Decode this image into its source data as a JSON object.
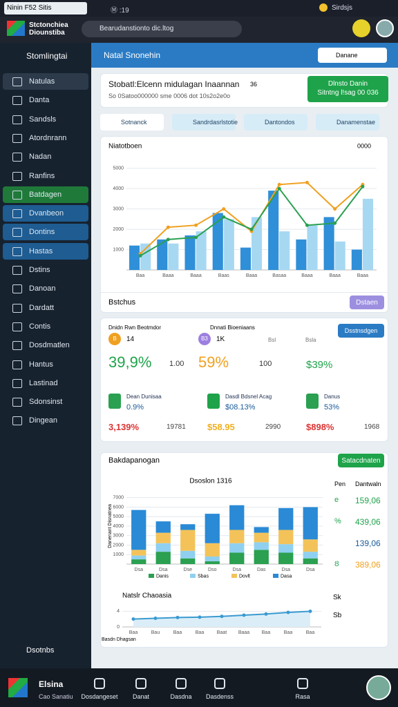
{
  "status_bar": {
    "left": "Ninin F52 Sitis",
    "tab": "Ⓜ :19",
    "right": "Sirdsjs"
  },
  "browser": {
    "title": "Stctonchiea Diounstiba",
    "url": "Bearudanstionto dic.ltog"
  },
  "sidebar": {
    "header": "Stomlingtai",
    "items": [
      "Natulas",
      "Danta",
      "Sandsls",
      "Atordnrann",
      "Nadan",
      "Ranfins",
      "Batdagen",
      "Dvanbeon",
      "Dontins",
      "Hastas",
      "Dstins",
      "Danoan",
      "Dardatt",
      "Contis",
      "Dosdmatlen",
      "Hantus",
      "Lastinad",
      "Sdonsinst",
      "Dingean"
    ],
    "footer": "Dsotnbs"
  },
  "panel": {
    "title": "Natal Snonehin",
    "pill": "Danane"
  },
  "summary": {
    "title": "Stobatl:Elcenn midulagan Inaannan",
    "meta": "36",
    "sub": "So 0Satoo000000 sme 0006 dot 10s2o2e0o",
    "button_line1": "Dlnsto Danin",
    "button_line2": "Sitntng l!sag 00 036"
  },
  "tabs": [
    "Sotnanck",
    "Sandrdasrlstotie",
    "Dantondos",
    "Danamenstae"
  ],
  "trend": {
    "footer": "Bstchus",
    "button": "Dstaen"
  },
  "stats": {
    "head": [
      "Dnidn Rwn Beotmdor",
      "Dnnati Bioeniaans",
      "Bsl",
      "Bsla"
    ],
    "button": "Dsstnsdgen",
    "top": [
      {
        "badge": "B",
        "small": "14",
        "big": "39,9%",
        "side": "1.00"
      },
      {
        "badge": "B3",
        "small": "1K",
        "big": "59%",
        "side": "100"
      },
      {
        "big": "$39%"
      }
    ],
    "bottom": [
      {
        "label": "Dean Dunisaa",
        "small": "0.9%",
        "big": "3,139%",
        "side": "19781"
      },
      {
        "label": "Dasdl Bdsnel Acag",
        "small": "$08.13%",
        "big": "$58.95",
        "side": "2990"
      },
      {
        "label": "Danus",
        "small": "53%",
        "big": "$898%",
        "side": "1968"
      }
    ]
  },
  "breakdown": {
    "title": "Bakdapanogan",
    "button": "Satacdnaten",
    "col_head": [
      "Pen",
      "Dantwaln"
    ],
    "rows": [
      [
        "e",
        "159,06"
      ],
      [
        "%",
        "439,06"
      ],
      [
        "",
        "139,06"
      ],
      [
        "Ȣ",
        "389,06"
      ]
    ],
    "side": [
      "Sk",
      "Sb"
    ]
  },
  "bottom_nav": {
    "brand": "Elsina",
    "brand_sub": "Cao Sanatiu",
    "items": [
      "Dosdangeset",
      "Danat",
      "Dasdna",
      "Dasdenss",
      "Rasa"
    ]
  },
  "chart_data": [
    {
      "type": "combo",
      "title": "Niatotboen",
      "annotation": "0000",
      "categories": [
        "Baa",
        "Baaa",
        "Baaa",
        "Baas",
        "Baaa",
        "Basaa",
        "Baaa",
        "Baaa",
        "Baaa"
      ],
      "ylim": [
        0,
        5500
      ],
      "yticks": [
        1000,
        2000,
        3000,
        4000,
        5000
      ],
      "grid": true,
      "series": [
        {
          "kind": "bar",
          "color": "#2f8fd8",
          "values": [
            1200,
            1500,
            1700,
            2800,
            1100,
            3900,
            1500,
            2600,
            1000
          ]
        },
        {
          "kind": "bar",
          "color": "#a7d8f2",
          "values": [
            1300,
            1300,
            1900,
            2500,
            2600,
            1900,
            2200,
            1400,
            3500
          ]
        },
        {
          "kind": "line",
          "color": "#f0a020",
          "values": [
            800,
            2100,
            2200,
            3000,
            1900,
            4200,
            4300,
            3000,
            4200
          ]
        },
        {
          "kind": "line",
          "color": "#2aa050",
          "values": [
            700,
            1500,
            1600,
            2600,
            2000,
            4000,
            2200,
            2300,
            4100
          ]
        }
      ]
    },
    {
      "type": "stacked_bar",
      "title": "Dsoslon 1316",
      "ylabel": "Danenant Disnatnea",
      "categories": [
        "Dsa",
        "Dsa",
        "Dse",
        "Dso",
        "Dsa",
        "Das",
        "Dsa",
        "Dsa"
      ],
      "ylim": [
        0,
        8000
      ],
      "yticks": [
        1000,
        2000,
        3000,
        4000,
        5000,
        6000,
        7000
      ],
      "grid": true,
      "series": [
        {
          "name": "Danis",
          "color": "#2aa050",
          "values": [
            500,
            1300,
            600,
            300,
            1200,
            1500,
            1200,
            600
          ]
        },
        {
          "name": "Sbas",
          "color": "#8fd0f0",
          "values": [
            400,
            900,
            800,
            500,
            1000,
            800,
            900,
            700
          ]
        },
        {
          "name": "Dovlt",
          "color": "#f3c35a",
          "values": [
            600,
            1100,
            2200,
            1400,
            1400,
            1000,
            1500,
            1300
          ]
        },
        {
          "name": "Dasa",
          "color": "#2a8ad6",
          "values": [
            4200,
            1200,
            600,
            3100,
            2600,
            600,
            2300,
            3400
          ]
        }
      ]
    },
    {
      "type": "line",
      "title": "Natslr Chaoasia",
      "caption": "Basdn Dhagsan",
      "categories": [
        "Baa",
        "Bau",
        "Baa",
        "Baa",
        "Baat",
        "Baaa",
        "Baa",
        "Baa",
        "Baa"
      ],
      "ylim": [
        0,
        6
      ],
      "yticks": [
        0,
        4
      ],
      "grid": true,
      "series": [
        {
          "color": "#3a9ad0",
          "values": [
            2,
            2.2,
            2.4,
            2.5,
            2.7,
            3,
            3.3,
            3.7,
            4
          ]
        }
      ]
    }
  ]
}
